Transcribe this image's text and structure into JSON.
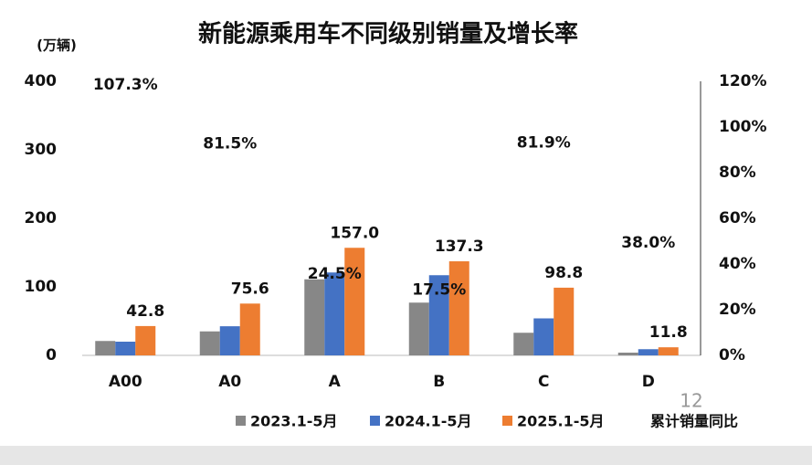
{
  "chart_data": {
    "type": "bar",
    "title": "新能源乘用车不同级别销量及增长率",
    "y_label": "(万辆)",
    "categories": [
      "A00",
      "A0",
      "A",
      "B",
      "C",
      "D"
    ],
    "series": [
      {
        "name": "2023.1-5月",
        "color": "#878787",
        "values": [
          21,
          35,
          111,
          77,
          33,
          4
        ]
      },
      {
        "name": "2024.1-5月",
        "color": "#4472c4",
        "values": [
          20,
          42.5,
          121,
          117,
          54,
          9
        ]
      },
      {
        "name": "2025.1-5月",
        "color": "#ed7d31",
        "values": [
          42.8,
          75.6,
          157,
          137.3,
          98.8,
          11.8
        ],
        "value_labels": [
          "42.8",
          "75.6",
          "157.0",
          "137.3",
          "98.8",
          "11.8"
        ]
      },
      {
        "name": "累计销量同比",
        "axis": "y2",
        "values": [
          107.3,
          81.5,
          24.5,
          17.5,
          81.9,
          38.0
        ],
        "value_labels": [
          "107.3%",
          "81.5%",
          "24.5%",
          "17.5%",
          "81.9%",
          "38.0%"
        ]
      }
    ],
    "ylim": [
      0,
      400
    ],
    "yticks": [
      0,
      100,
      200,
      300,
      400
    ],
    "y2lim": [
      0,
      120
    ],
    "y2ticks": [
      {
        "value": 0,
        "label": "0%"
      },
      {
        "value": 20,
        "label": "20%"
      },
      {
        "value": 40,
        "label": "40%"
      },
      {
        "value": 60,
        "label": "60%"
      },
      {
        "value": 80,
        "label": "80%"
      },
      {
        "value": 100,
        "label": "100%"
      },
      {
        "value": 120,
        "label": "120%"
      }
    ],
    "page_number": "12"
  }
}
